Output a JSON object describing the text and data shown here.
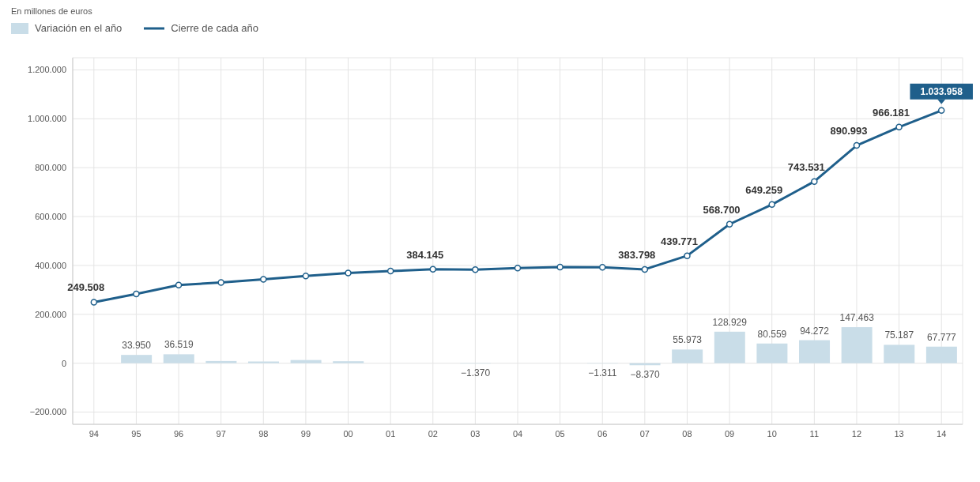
{
  "chart_data": {
    "type": "bar",
    "subtitle": "En millones de euros",
    "categories": [
      "94",
      "95",
      "96",
      "97",
      "98",
      "99",
      "00",
      "01",
      "02",
      "03",
      "04",
      "05",
      "06",
      "07",
      "08",
      "09",
      "10",
      "11",
      "12",
      "13",
      "14"
    ],
    "series": [
      {
        "name": "Variación en el año",
        "color": "#c9dde8",
        "values": [
          null,
          33950,
          36519,
          9000,
          7000,
          13000,
          8000,
          null,
          null,
          -1370,
          null,
          null,
          -1311,
          -8370,
          55973,
          128929,
          80559,
          94272,
          147463,
          75187,
          67777
        ],
        "value_labels": [
          null,
          "33.950",
          "36.519",
          null,
          null,
          null,
          null,
          null,
          null,
          "−1.370",
          null,
          null,
          "−1.311",
          "−8.370",
          "55.973",
          "128.929",
          "80.559",
          "94.272",
          "147.463",
          "75.187",
          "67.777"
        ]
      },
      {
        "name": "Cierre de cada año",
        "type": "line",
        "color": "#1f5f8b",
        "values": [
          249508,
          283458,
          319977,
          330000,
          343000,
          357000,
          369000,
          377000,
          384145,
          382775,
          389000,
          393479,
          392168,
          383798,
          439771,
          568700,
          649259,
          743531,
          890993,
          966181,
          1033958
        ],
        "value_labels": [
          "249.508",
          null,
          null,
          null,
          null,
          null,
          null,
          null,
          "384.145",
          null,
          null,
          null,
          null,
          "383.798",
          "439.771",
          "568.700",
          "649.259",
          "743.531",
          "890.993",
          "966.181",
          "1.033.958"
        ]
      }
    ],
    "ylim": [
      -250000,
      1250000
    ],
    "yticks": [
      {
        "value": -200000,
        "label": "−200.000"
      },
      0,
      {
        "value": 200000,
        "label": "200.000"
      },
      {
        "value": 400000,
        "label": "400.000"
      },
      {
        "value": 600000,
        "label": "600.000"
      },
      {
        "value": 800000,
        "label": "800.000"
      },
      {
        "value": 1000000,
        "label": "1.000.000"
      },
      {
        "value": 1200000,
        "label": "1.200.000"
      }
    ],
    "grid": true,
    "legend": "top left",
    "marker": "circle",
    "line_style": "solid"
  }
}
